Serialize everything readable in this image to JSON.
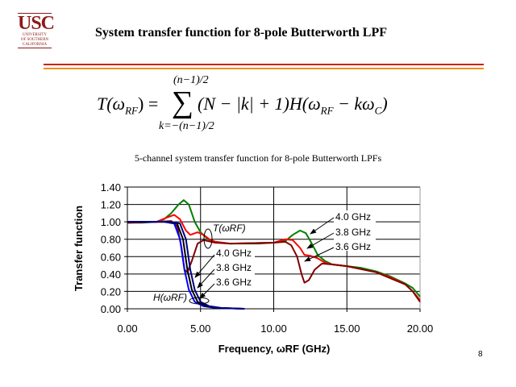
{
  "slide": {
    "logo_text": "USC",
    "logo_sub": [
      "UNIVERSITY",
      "OF SOUTHERN",
      "CALIFORNIA"
    ],
    "title": "System transfer function for 8-pole Butterworth LPF",
    "page_number": "8"
  },
  "formula": {
    "lhs": "T(ω",
    "lhs_sub": "RF",
    "lhs_end": ") =",
    "upper": "(n−1)/2",
    "lower": "k=−(n−1)/2",
    "body": "(N − |k| + 1)H(ω",
    "body_sub": "RF",
    "body_mid": " − kω",
    "body_sub2": "C",
    "body_end": ")"
  },
  "chart_data": {
    "type": "line",
    "title": "5-channel system transfer function for 8-pole Butterworth LPFs",
    "xlabel": "Frequency, ωRF (GHz)",
    "ylabel": "Transfer function",
    "xlim": [
      0,
      20
    ],
    "ylim": [
      0,
      1.4
    ],
    "xticks": [
      "0.00",
      "5.00",
      "10.00",
      "15.00",
      "20.00"
    ],
    "yticks": [
      "0.00",
      "0.20",
      "0.40",
      "0.60",
      "0.80",
      "1.00",
      "1.20",
      "1.40"
    ],
    "grid": true,
    "legend": "none",
    "series": [
      {
        "name": "T 4.0 GHz",
        "color": "#008000",
        "points": [
          [
            0,
            0.99
          ],
          [
            1,
            0.99
          ],
          [
            2,
            1.0
          ],
          [
            2.5,
            1.03
          ],
          [
            3,
            1.1
          ],
          [
            3.5,
            1.2
          ],
          [
            3.85,
            1.25
          ],
          [
            4.2,
            1.2
          ],
          [
            4.6,
            1.0
          ],
          [
            5,
            0.88
          ],
          [
            5.5,
            0.8
          ],
          [
            6,
            0.77
          ],
          [
            7,
            0.75
          ],
          [
            9,
            0.75
          ],
          [
            10,
            0.76
          ],
          [
            10.8,
            0.78
          ],
          [
            11.3,
            0.85
          ],
          [
            11.8,
            0.9
          ],
          [
            12.2,
            0.87
          ],
          [
            12.6,
            0.75
          ],
          [
            13,
            0.62
          ],
          [
            13.5,
            0.55
          ],
          [
            14,
            0.51
          ],
          [
            15,
            0.49
          ],
          [
            16,
            0.47
          ],
          [
            17,
            0.43
          ],
          [
            18,
            0.37
          ],
          [
            19,
            0.29
          ],
          [
            19.5,
            0.24
          ],
          [
            20,
            0.14
          ]
        ]
      },
      {
        "name": "T 3.8 GHz",
        "color": "#ff0000",
        "points": [
          [
            0,
            0.99
          ],
          [
            2,
            1.0
          ],
          [
            2.7,
            1.05
          ],
          [
            3.2,
            1.08
          ],
          [
            3.6,
            1.03
          ],
          [
            4,
            0.9
          ],
          [
            4.3,
            0.85
          ],
          [
            4.8,
            0.88
          ],
          [
            5.2,
            0.85
          ],
          [
            5.6,
            0.8
          ],
          [
            6,
            0.77
          ],
          [
            7,
            0.75
          ],
          [
            10,
            0.76
          ],
          [
            10.8,
            0.8
          ],
          [
            11.3,
            0.79
          ],
          [
            11.8,
            0.7
          ],
          [
            12.1,
            0.62
          ],
          [
            12.5,
            0.61
          ],
          [
            13,
            0.58
          ],
          [
            13.5,
            0.53
          ],
          [
            14,
            0.51
          ],
          [
            15,
            0.49
          ],
          [
            17,
            0.42
          ],
          [
            18,
            0.36
          ],
          [
            19,
            0.28
          ],
          [
            19.5,
            0.2
          ],
          [
            20,
            0.1
          ]
        ]
      },
      {
        "name": "T 3.6 GHz",
        "color": "#800000",
        "points": [
          [
            0,
            0.99
          ],
          [
            2,
            1.0
          ],
          [
            3,
            1.01
          ],
          [
            3.4,
            0.95
          ],
          [
            3.7,
            0.7
          ],
          [
            3.9,
            0.45
          ],
          [
            4.1,
            0.42
          ],
          [
            4.4,
            0.55
          ],
          [
            4.8,
            0.75
          ],
          [
            5.2,
            0.79
          ],
          [
            6,
            0.76
          ],
          [
            7,
            0.75
          ],
          [
            10,
            0.76
          ],
          [
            10.8,
            0.77
          ],
          [
            11.2,
            0.73
          ],
          [
            11.6,
            0.6
          ],
          [
            11.9,
            0.4
          ],
          [
            12.1,
            0.3
          ],
          [
            12.4,
            0.33
          ],
          [
            12.8,
            0.45
          ],
          [
            13.3,
            0.52
          ],
          [
            14,
            0.51
          ],
          [
            15,
            0.49
          ],
          [
            17,
            0.42
          ],
          [
            18,
            0.35
          ],
          [
            19,
            0.28
          ],
          [
            19.5,
            0.2
          ],
          [
            20,
            0.08
          ]
        ]
      },
      {
        "name": "H 3.6 GHz",
        "color": "#0000ff",
        "points": [
          [
            0,
            1
          ],
          [
            2.5,
            1
          ],
          [
            3.2,
            0.98
          ],
          [
            3.6,
            0.8
          ],
          [
            3.9,
            0.45
          ],
          [
            4.2,
            0.22
          ],
          [
            4.6,
            0.08
          ],
          [
            5.2,
            0.03
          ],
          [
            6,
            0.01
          ],
          [
            8,
            0.0
          ]
        ]
      },
      {
        "name": "H 3.8 GHz",
        "color": "#000000",
        "points": [
          [
            0,
            1
          ],
          [
            2.7,
            1
          ],
          [
            3.4,
            0.98
          ],
          [
            3.8,
            0.8
          ],
          [
            4.1,
            0.45
          ],
          [
            4.4,
            0.22
          ],
          [
            4.8,
            0.08
          ],
          [
            5.4,
            0.03
          ],
          [
            6.2,
            0.01
          ],
          [
            8,
            0.0
          ]
        ]
      },
      {
        "name": "H 4.0 GHz",
        "color": "#000080",
        "points": [
          [
            0,
            1
          ],
          [
            2.9,
            1
          ],
          [
            3.6,
            0.98
          ],
          [
            4.0,
            0.8
          ],
          [
            4.3,
            0.45
          ],
          [
            4.6,
            0.22
          ],
          [
            5.0,
            0.08
          ],
          [
            5.6,
            0.03
          ],
          [
            6.4,
            0.01
          ],
          [
            8,
            0.0
          ]
        ]
      }
    ],
    "annotations": {
      "T": "T(ωRF)",
      "H": "H(ωRF)",
      "left_labels": [
        "4.0 GHz",
        "3.8 GHz",
        "3.6 GHz"
      ],
      "right_labels": [
        "4.0 GHz",
        "3.8 GHz",
        "3.6 GHz"
      ]
    }
  }
}
